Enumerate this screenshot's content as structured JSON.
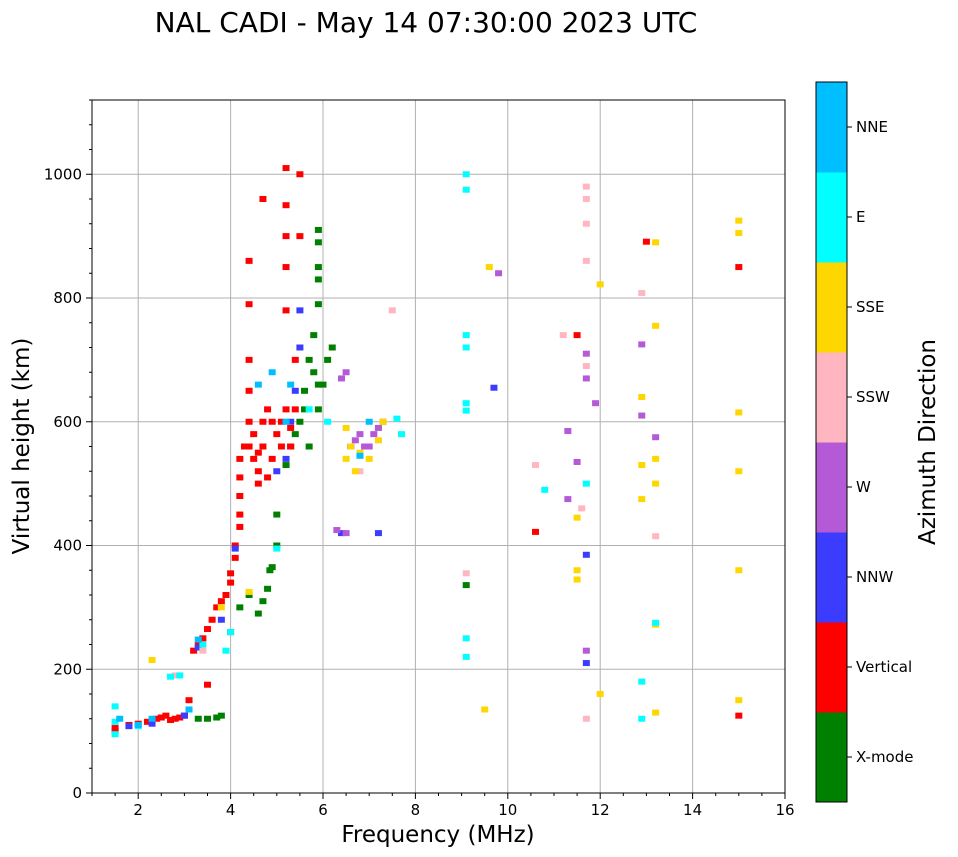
{
  "chart_data": {
    "type": "scatter",
    "title": "NAL CADI - May 14 07:30:00 2023 UTC",
    "xlabel": "Frequency (MHz)",
    "ylabel": "Virtual height (km)",
    "xlim": [
      1,
      16
    ],
    "ylim": [
      0,
      1120
    ],
    "xticks": [
      2,
      4,
      6,
      8,
      10,
      12,
      14,
      16
    ],
    "yticks": [
      0,
      200,
      400,
      600,
      800,
      1000
    ],
    "grid": true,
    "colorbar": {
      "label": "Azimuth Direction",
      "categories": [
        {
          "name": "X-mode",
          "color": "#008000"
        },
        {
          "name": "Vertical",
          "color": "#ff0000"
        },
        {
          "name": "NNW",
          "color": "#3c3cff"
        },
        {
          "name": "W",
          "color": "#b45ad7"
        },
        {
          "name": "SSW",
          "color": "#ffb6c1"
        },
        {
          "name": "SSE",
          "color": "#ffd700"
        },
        {
          "name": "E",
          "color": "#00ffff"
        },
        {
          "name": "NNE",
          "color": "#00bfff"
        }
      ]
    },
    "series": [
      {
        "name": "X-mode",
        "points": [
          [
            3.3,
            120
          ],
          [
            3.5,
            120
          ],
          [
            3.7,
            122
          ],
          [
            3.8,
            125
          ],
          [
            4.0,
            260
          ],
          [
            4.2,
            300
          ],
          [
            4.4,
            320
          ],
          [
            4.6,
            290
          ],
          [
            4.7,
            310
          ],
          [
            4.8,
            330
          ],
          [
            4.85,
            360
          ],
          [
            4.9,
            365
          ],
          [
            5.0,
            400
          ],
          [
            5.0,
            450
          ],
          [
            5.2,
            530
          ],
          [
            5.3,
            560
          ],
          [
            5.4,
            580
          ],
          [
            5.5,
            600
          ],
          [
            5.6,
            620
          ],
          [
            5.6,
            650
          ],
          [
            5.7,
            560
          ],
          [
            5.7,
            700
          ],
          [
            5.8,
            680
          ],
          [
            5.8,
            740
          ],
          [
            5.9,
            620
          ],
          [
            5.9,
            660
          ],
          [
            5.9,
            790
          ],
          [
            5.9,
            830
          ],
          [
            5.9,
            850
          ],
          [
            5.9,
            890
          ],
          [
            5.9,
            910
          ],
          [
            6.0,
            660
          ],
          [
            6.1,
            700
          ],
          [
            6.2,
            720
          ],
          [
            9.1,
            336
          ]
        ]
      },
      {
        "name": "Vertical",
        "points": [
          [
            1.5,
            100
          ],
          [
            1.5,
            105
          ],
          [
            1.8,
            110
          ],
          [
            2.0,
            112
          ],
          [
            2.2,
            115
          ],
          [
            2.3,
            118
          ],
          [
            2.4,
            120
          ],
          [
            2.5,
            122
          ],
          [
            2.6,
            125
          ],
          [
            2.7,
            118
          ],
          [
            2.8,
            120
          ],
          [
            2.9,
            122
          ],
          [
            3.0,
            125
          ],
          [
            3.1,
            150
          ],
          [
            3.2,
            230
          ],
          [
            3.3,
            240
          ],
          [
            3.4,
            250
          ],
          [
            3.5,
            175
          ],
          [
            3.5,
            265
          ],
          [
            3.6,
            280
          ],
          [
            3.7,
            300
          ],
          [
            3.8,
            310
          ],
          [
            3.9,
            320
          ],
          [
            4.0,
            340
          ],
          [
            4.0,
            355
          ],
          [
            4.1,
            380
          ],
          [
            4.1,
            400
          ],
          [
            4.2,
            430
          ],
          [
            4.2,
            450
          ],
          [
            4.2,
            480
          ],
          [
            4.2,
            510
          ],
          [
            4.2,
            540
          ],
          [
            4.3,
            560
          ],
          [
            4.4,
            560
          ],
          [
            4.4,
            600
          ],
          [
            4.4,
            650
          ],
          [
            4.4,
            700
          ],
          [
            4.4,
            790
          ],
          [
            4.4,
            860
          ],
          [
            4.5,
            540
          ],
          [
            4.5,
            580
          ],
          [
            4.6,
            500
          ],
          [
            4.6,
            520
          ],
          [
            4.6,
            550
          ],
          [
            4.7,
            560
          ],
          [
            4.7,
            600
          ],
          [
            4.7,
            960
          ],
          [
            4.8,
            510
          ],
          [
            4.8,
            620
          ],
          [
            4.9,
            540
          ],
          [
            4.9,
            600
          ],
          [
            5.0,
            580
          ],
          [
            5.1,
            560
          ],
          [
            5.1,
            600
          ],
          [
            5.2,
            620
          ],
          [
            5.2,
            780
          ],
          [
            5.2,
            850
          ],
          [
            5.2,
            900
          ],
          [
            5.2,
            950
          ],
          [
            5.2,
            1010
          ],
          [
            5.3,
            560
          ],
          [
            5.3,
            590
          ],
          [
            5.4,
            620
          ],
          [
            5.4,
            700
          ],
          [
            5.5,
            1000
          ],
          [
            5.5,
            900
          ],
          [
            10.6,
            422
          ],
          [
            13.0,
            891
          ],
          [
            15.0,
            850
          ],
          [
            15.0,
            125
          ],
          [
            11.5,
            740
          ]
        ]
      },
      {
        "name": "NNW",
        "points": [
          [
            1.8,
            108
          ],
          [
            2.3,
            112
          ],
          [
            3.0,
            125
          ],
          [
            3.3,
            235
          ],
          [
            3.8,
            280
          ],
          [
            4.1,
            395
          ],
          [
            5.0,
            520
          ],
          [
            5.2,
            540
          ],
          [
            5.3,
            600
          ],
          [
            5.4,
            650
          ],
          [
            5.5,
            720
          ],
          [
            5.5,
            780
          ],
          [
            6.4,
            420
          ],
          [
            6.6,
            560
          ],
          [
            7.2,
            420
          ],
          [
            9.7,
            655
          ],
          [
            11.7,
            210
          ],
          [
            11.7,
            385
          ]
        ]
      },
      {
        "name": "W",
        "points": [
          [
            6.3,
            425
          ],
          [
            6.5,
            420
          ],
          [
            6.6,
            560
          ],
          [
            6.7,
            570
          ],
          [
            6.8,
            580
          ],
          [
            6.9,
            560
          ],
          [
            7.0,
            560
          ],
          [
            7.1,
            580
          ],
          [
            7.2,
            590
          ],
          [
            7.3,
            600
          ],
          [
            6.4,
            670
          ],
          [
            6.5,
            680
          ],
          [
            9.8,
            840
          ],
          [
            11.3,
            585
          ],
          [
            11.5,
            535
          ],
          [
            11.7,
            670
          ],
          [
            11.7,
            710
          ],
          [
            11.9,
            630
          ],
          [
            12.9,
            725
          ],
          [
            12.9,
            610
          ],
          [
            13.2,
            575
          ],
          [
            11.3,
            475
          ],
          [
            11.7,
            230
          ]
        ]
      },
      {
        "name": "SSW",
        "points": [
          [
            2.8,
            190
          ],
          [
            3.4,
            230
          ],
          [
            6.8,
            520
          ],
          [
            7.5,
            780
          ],
          [
            10.6,
            530
          ],
          [
            11.2,
            740
          ],
          [
            11.7,
            980
          ],
          [
            11.7,
            960
          ],
          [
            11.7,
            920
          ],
          [
            11.7,
            860
          ],
          [
            11.7,
            690
          ],
          [
            11.7,
            120
          ],
          [
            11.6,
            460
          ],
          [
            12.9,
            808
          ],
          [
            13.2,
            415
          ],
          [
            9.1,
            355
          ]
        ]
      },
      {
        "name": "SSE",
        "points": [
          [
            2.3,
            215
          ],
          [
            3.8,
            300
          ],
          [
            4.4,
            325
          ],
          [
            6.5,
            540
          ],
          [
            6.5,
            590
          ],
          [
            6.6,
            560
          ],
          [
            6.7,
            520
          ],
          [
            6.8,
            550
          ],
          [
            7.0,
            540
          ],
          [
            7.2,
            570
          ],
          [
            7.3,
            600
          ],
          [
            9.6,
            850
          ],
          [
            9.5,
            135
          ],
          [
            11.5,
            360
          ],
          [
            11.5,
            345
          ],
          [
            11.5,
            445
          ],
          [
            12.0,
            822
          ],
          [
            12.0,
            160
          ],
          [
            12.9,
            640
          ],
          [
            12.9,
            530
          ],
          [
            12.9,
            475
          ],
          [
            13.2,
            755
          ],
          [
            13.2,
            540
          ],
          [
            13.2,
            500
          ],
          [
            13.2,
            890
          ],
          [
            13.2,
            272
          ],
          [
            13.2,
            130
          ],
          [
            15.0,
            925
          ],
          [
            15.0,
            905
          ],
          [
            15.0,
            615
          ],
          [
            15.0,
            520
          ],
          [
            15.0,
            360
          ],
          [
            15.0,
            150
          ]
        ]
      },
      {
        "name": "E",
        "points": [
          [
            1.5,
            95
          ],
          [
            1.5,
            115
          ],
          [
            1.5,
            140
          ],
          [
            2.0,
            108
          ],
          [
            2.7,
            188
          ],
          [
            2.9,
            190
          ],
          [
            3.4,
            240
          ],
          [
            3.9,
            230
          ],
          [
            4.0,
            260
          ],
          [
            5.0,
            395
          ],
          [
            5.7,
            620
          ],
          [
            6.1,
            600
          ],
          [
            7.6,
            605
          ],
          [
            7.7,
            580
          ],
          [
            9.1,
            1000
          ],
          [
            9.1,
            975
          ],
          [
            9.1,
            740
          ],
          [
            9.1,
            720
          ],
          [
            9.1,
            630
          ],
          [
            9.1,
            618
          ],
          [
            9.1,
            250
          ],
          [
            9.1,
            220
          ],
          [
            10.8,
            490
          ],
          [
            11.7,
            500
          ],
          [
            12.9,
            180
          ],
          [
            12.9,
            120
          ],
          [
            13.2,
            275
          ]
        ]
      },
      {
        "name": "NNE",
        "points": [
          [
            1.6,
            120
          ],
          [
            2.0,
            110
          ],
          [
            2.3,
            120
          ],
          [
            3.1,
            135
          ],
          [
            3.3,
            248
          ],
          [
            4.6,
            660
          ],
          [
            4.9,
            680
          ],
          [
            5.2,
            600
          ],
          [
            5.3,
            660
          ],
          [
            6.8,
            545
          ],
          [
            7.0,
            600
          ]
        ]
      }
    ]
  }
}
